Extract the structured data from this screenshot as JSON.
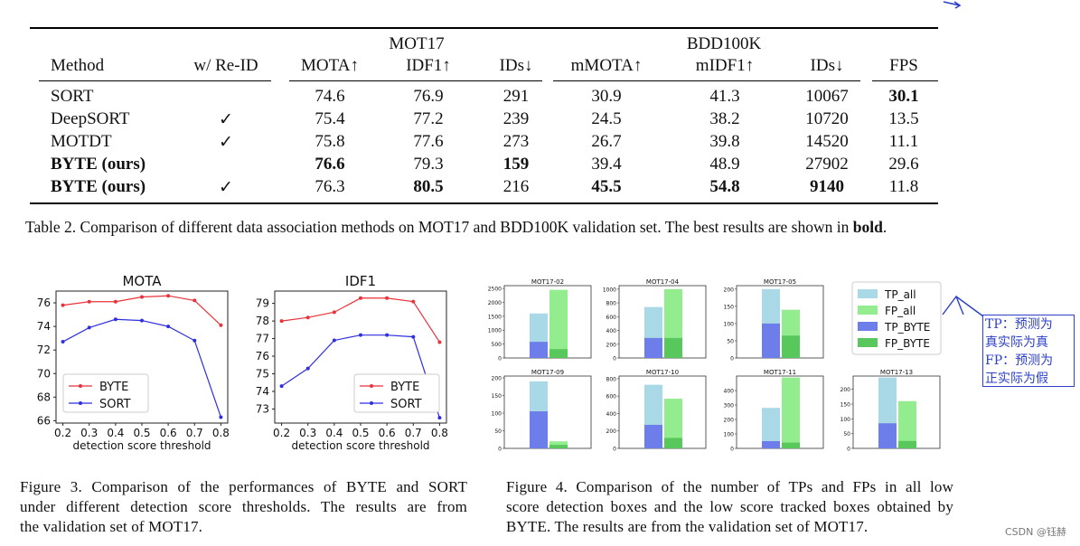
{
  "table": {
    "group_mot17": "MOT17",
    "group_bdd": "BDD100K",
    "headers": [
      "Method",
      "w/ Re-ID",
      "MOTA↑",
      "IDF1↑",
      "IDs↓",
      "mMOTA↑",
      "mIDF1↑",
      "IDs↓",
      "FPS"
    ],
    "rows": [
      {
        "cells": [
          "SORT",
          "",
          "74.6",
          "76.9",
          "291",
          "30.9",
          "41.3",
          "10067",
          "30.1"
        ],
        "bold": [
          false,
          false,
          false,
          false,
          false,
          false,
          false,
          false,
          true
        ]
      },
      {
        "cells": [
          "DeepSORT",
          "✓",
          "75.4",
          "77.2",
          "239",
          "24.5",
          "38.2",
          "10720",
          "13.5"
        ],
        "bold": [
          false,
          false,
          false,
          false,
          false,
          false,
          false,
          false,
          false
        ]
      },
      {
        "cells": [
          "MOTDT",
          "✓",
          "75.8",
          "77.6",
          "273",
          "26.7",
          "39.8",
          "14520",
          "11.1"
        ],
        "bold": [
          false,
          false,
          false,
          false,
          false,
          false,
          false,
          false,
          false
        ]
      },
      {
        "cells": [
          "BYTE (ours)",
          "",
          "76.6",
          "79.3",
          "159",
          "39.4",
          "48.9",
          "27902",
          "29.6"
        ],
        "bold": [
          true,
          false,
          true,
          false,
          true,
          false,
          false,
          false,
          false
        ]
      },
      {
        "cells": [
          "BYTE (ours)",
          "✓",
          "76.3",
          "80.5",
          "216",
          "45.5",
          "54.8",
          "9140",
          "11.8"
        ],
        "bold": [
          true,
          false,
          false,
          true,
          false,
          true,
          true,
          true,
          false
        ]
      }
    ],
    "caption_pre": "Table 2. Comparison of different data association methods on MOT17 and BDD100K validation set. The best results are shown in ",
    "caption_bold": "bold",
    "caption_post": "."
  },
  "figure3": {
    "caption_lines": [
      "Figure 3.  Comparison of the performances of BYTE and SORT",
      "under different detection score thresholds.  The results are from",
      "the validation set of MOT17."
    ]
  },
  "figure4": {
    "caption_lines": [
      "Figure 4.  Comparison of the number of TPs and FPs in all low",
      "score detection boxes and the low score tracked boxes obtained by",
      "BYTE. The results are from the validation set of MOT17."
    ]
  },
  "annotation": {
    "lines": [
      "TP：预测为",
      "真实际为真",
      "FP：预测为",
      "正实际为假"
    ],
    "color": "#2b3fc8"
  },
  "watermark": "CSDN @钰赫",
  "chart_data": [
    {
      "type": "line",
      "title": "MOTA",
      "xlabel": "detection score threshold",
      "ylabel": "",
      "x": [
        0.2,
        0.3,
        0.4,
        0.5,
        0.6,
        0.7,
        0.8
      ],
      "ylim": [
        65.8,
        77.0
      ],
      "yticks": [
        66,
        68,
        70,
        72,
        74,
        76
      ],
      "series": [
        {
          "name": "BYTE",
          "color": "#e8333a",
          "values": [
            75.8,
            76.1,
            76.1,
            76.5,
            76.6,
            76.2,
            74.1
          ]
        },
        {
          "name": "SORT",
          "color": "#2f2fe0",
          "values": [
            72.7,
            73.9,
            74.6,
            74.5,
            74.0,
            72.8,
            66.3
          ]
        }
      ],
      "legend": "center-left",
      "grid": false
    },
    {
      "type": "line",
      "title": "IDF1",
      "xlabel": "detection score threshold",
      "ylabel": "",
      "x": [
        0.2,
        0.3,
        0.4,
        0.5,
        0.6,
        0.7,
        0.8
      ],
      "ylim": [
        72.2,
        79.7
      ],
      "yticks": [
        73,
        74,
        75,
        76,
        77,
        78,
        79
      ],
      "series": [
        {
          "name": "BYTE",
          "color": "#e8333a",
          "values": [
            78.0,
            78.2,
            78.5,
            79.3,
            79.3,
            79.1,
            76.8
          ]
        },
        {
          "name": "SORT",
          "color": "#2f2fe0",
          "values": [
            74.3,
            75.3,
            76.9,
            77.2,
            77.2,
            77.1,
            72.5
          ]
        }
      ],
      "legend": "center-right",
      "grid": false
    },
    {
      "type": "bar",
      "subtype": "grouped-stacked-panels",
      "legend": [
        "TP_all",
        "FP_all",
        "TP_BYTE",
        "FP_BYTE"
      ],
      "colors": {
        "TP_all": "#a9d8e6",
        "FP_all": "#93ec8e",
        "TP_BYTE": "#6d7de9",
        "FP_BYTE": "#58c85c"
      },
      "panels": [
        {
          "title": "MOT17-02",
          "ymax": 2600,
          "yticks": [
            0,
            500,
            1000,
            1500,
            2000,
            2500
          ],
          "TP_all": 1600,
          "FP_all": 2450,
          "TP_BYTE": 580,
          "FP_BYTE": 320
        },
        {
          "title": "MOT17-04",
          "ymax": 1050,
          "yticks": [
            0,
            200,
            400,
            600,
            800,
            1000
          ],
          "TP_all": 740,
          "FP_all": 1000,
          "TP_BYTE": 290,
          "FP_BYTE": 290
        },
        {
          "title": "MOT17-05",
          "ymax": 210,
          "yticks": [
            0,
            50,
            100,
            150,
            200
          ],
          "TP_all": 200,
          "FP_all": 140,
          "TP_BYTE": 100,
          "FP_BYTE": 65
        },
        {
          "title": "MOT17-09",
          "ymax": 205,
          "yticks": [
            0,
            50,
            100,
            150,
            200
          ],
          "TP_all": 190,
          "FP_all": 20,
          "TP_BYTE": 105,
          "FP_BYTE": 10
        },
        {
          "title": "MOT17-10",
          "ymax": 830,
          "yticks": [
            0,
            200,
            400,
            600,
            800
          ],
          "TP_all": 730,
          "FP_all": 570,
          "TP_BYTE": 270,
          "FP_BYTE": 120
        },
        {
          "title": "MOT17-11",
          "ymax": 500,
          "yticks": [
            0,
            100,
            200,
            300,
            400
          ],
          "TP_all": 280,
          "FP_all": 490,
          "TP_BYTE": 50,
          "FP_BYTE": 40
        },
        {
          "title": "MOT17-13",
          "ymax": 245,
          "yticks": [
            0,
            50,
            100,
            150,
            200
          ],
          "TP_all": 240,
          "FP_all": 160,
          "TP_BYTE": 85,
          "FP_BYTE": 25
        }
      ]
    }
  ]
}
